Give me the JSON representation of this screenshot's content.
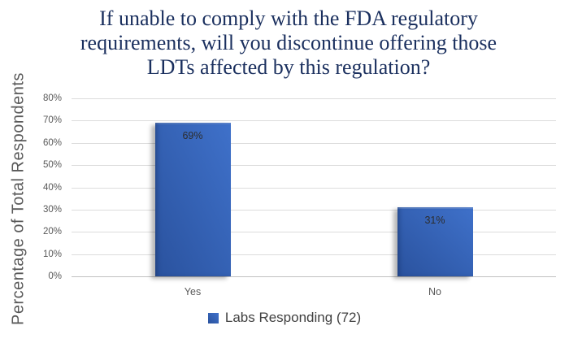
{
  "chart_data": {
    "type": "bar",
    "title": "If unable to comply with the FDA regulatory requirements, will you discontinue offering those LDTs affected by this regulation?",
    "title_lines": [
      "If unable to comply with the FDA regulatory",
      "requirements, will you discontinue offering those",
      "LDTs affected by this regulation?"
    ],
    "categories": [
      "Yes",
      "No"
    ],
    "values": [
      69,
      31
    ],
    "value_labels": [
      "69%",
      "31%"
    ],
    "ylabel": "Percentage of Total Respondents",
    "xlabel": "",
    "ylim": [
      0,
      80
    ],
    "ytick_step": 10,
    "ytick_suffix": "%",
    "ytick_labels": [
      "0%",
      "10%",
      "20%",
      "30%",
      "40%",
      "50%",
      "60%",
      "70%",
      "80%"
    ],
    "grid": true,
    "legend": {
      "label": "Labs Responding (72)",
      "position": "bottom"
    },
    "colors": {
      "bar_light": "#3f71ca",
      "bar_dark": "#2a529e",
      "title_text": "#1a2f5e",
      "axis_text": "#595959",
      "value_label_text": "#2d2d2d",
      "gridline": "#dcdcdc",
      "baseline": "#c0c0c0",
      "legend_text": "#404040",
      "background": "#ffffff"
    }
  }
}
